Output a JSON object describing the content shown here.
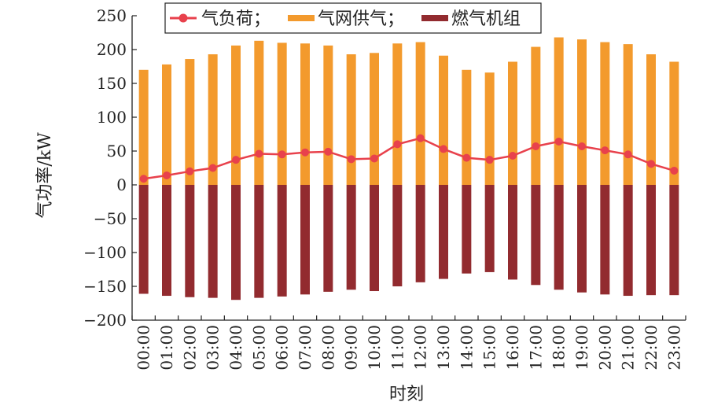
{
  "chart_data": {
    "type": "bar",
    "xlabel": "时刻",
    "ylabel": "气功率/kW",
    "ylim": [
      -200,
      250
    ],
    "yticks": [
      250,
      200,
      150,
      100,
      50,
      0,
      -50,
      -100,
      -150,
      -200
    ],
    "ytick_labels": [
      "250",
      "200",
      "150",
      "100",
      "50",
      "0",
      "−50",
      "−100",
      "−150",
      "−200"
    ],
    "categories": [
      "00:00",
      "01:00",
      "02:00",
      "03:00",
      "04:00",
      "05:00",
      "06:00",
      "07:00",
      "08:00",
      "09:00",
      "10:00",
      "11:00",
      "12:00",
      "13:00",
      "14:00",
      "15:00",
      "16:00",
      "17:00",
      "18:00",
      "19:00",
      "20:00",
      "21:00",
      "22:00",
      "23:00"
    ],
    "series": [
      {
        "name": "气网供气",
        "kind": "bar",
        "color": "#f39a2d",
        "values": [
          170,
          178,
          186,
          193,
          206,
          213,
          210,
          209,
          206,
          193,
          195,
          209,
          211,
          191,
          170,
          166,
          182,
          204,
          218,
          215,
          211,
          208,
          193,
          182
        ]
      },
      {
        "name": "燃气机组",
        "kind": "bar",
        "color": "#922b2f",
        "values": [
          -161,
          -164,
          -166,
          -167,
          -170,
          -167,
          -165,
          -162,
          -158,
          -155,
          -157,
          -150,
          -144,
          -139,
          -131,
          -129,
          -140,
          -148,
          -155,
          -159,
          -162,
          -164,
          -163,
          -163
        ]
      },
      {
        "name": "气负荷",
        "kind": "line",
        "color": "#e8414c",
        "values": [
          9,
          14,
          20,
          25,
          37,
          46,
          45,
          48,
          49,
          38,
          39,
          60,
          69,
          53,
          40,
          37,
          43,
          57,
          64,
          57,
          51,
          45,
          31,
          21
        ]
      }
    ],
    "legend": {
      "position": "top",
      "entries": [
        {
          "label": "气负荷；",
          "series": "气负荷"
        },
        {
          "label": "气网供气；",
          "series": "气网供气"
        },
        {
          "label": "燃气机组",
          "series": "燃气机组"
        }
      ]
    },
    "grid": false
  }
}
